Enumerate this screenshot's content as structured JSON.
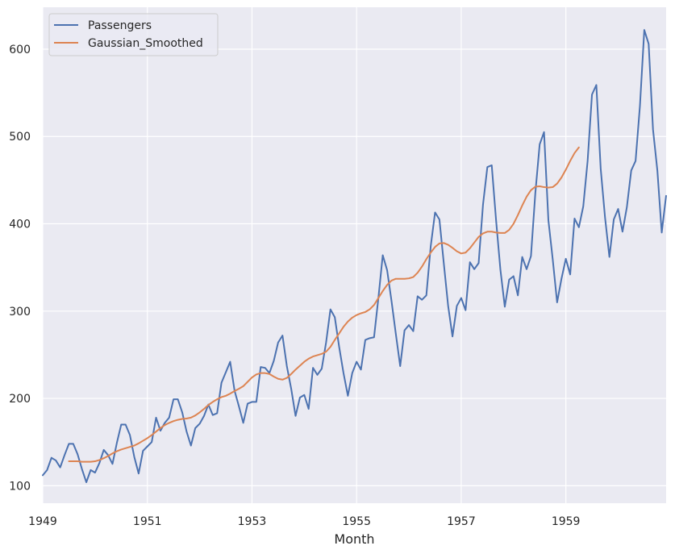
{
  "chart_data": {
    "type": "line",
    "title": "",
    "xlabel": "Month",
    "ylabel": "",
    "xlim": [
      1949.0,
      1960.917
    ],
    "ylim": [
      80,
      648
    ],
    "x_ticks": [
      {
        "value": 1949,
        "label": "1949"
      },
      {
        "value": 1951,
        "label": "1951"
      },
      {
        "value": 1953,
        "label": "1953"
      },
      {
        "value": 1955,
        "label": "1955"
      },
      {
        "value": 1957,
        "label": "1957"
      },
      {
        "value": 1959,
        "label": "1959"
      }
    ],
    "y_ticks": [
      {
        "value": 100,
        "label": "100"
      },
      {
        "value": 200,
        "label": "200"
      },
      {
        "value": 300,
        "label": "300"
      },
      {
        "value": 400,
        "label": "400"
      },
      {
        "value": 500,
        "label": "500"
      },
      {
        "value": 600,
        "label": "600"
      }
    ],
    "grid": true,
    "legend_position": "top-left",
    "x_start": 1949.0,
    "x_step": 0.08333,
    "series": [
      {
        "name": "Passengers",
        "color": "#4c72b0",
        "values": [
          112,
          118,
          132,
          129,
          121,
          135,
          148,
          148,
          136,
          119,
          104,
          118,
          115,
          126,
          141,
          135,
          125,
          149,
          170,
          170,
          158,
          133,
          114,
          140,
          145,
          150,
          178,
          163,
          172,
          178,
          199,
          199,
          184,
          162,
          146,
          166,
          171,
          180,
          193,
          181,
          183,
          218,
          230,
          242,
          209,
          191,
          172,
          194,
          196,
          196,
          236,
          235,
          229,
          243,
          264,
          272,
          237,
          211,
          180,
          201,
          204,
          188,
          235,
          227,
          234,
          264,
          302,
          293,
          259,
          229,
          203,
          229,
          242,
          233,
          267,
          269,
          270,
          315,
          364,
          347,
          312,
          274,
          237,
          278,
          284,
          277,
          317,
          313,
          318,
          374,
          413,
          405,
          355,
          306,
          271,
          306,
          315,
          301,
          356,
          348,
          355,
          422,
          465,
          467,
          404,
          347,
          305,
          336,
          340,
          318,
          362,
          348,
          363,
          435,
          491,
          505,
          404,
          359,
          310,
          337,
          360,
          342,
          406,
          396,
          420,
          472,
          548,
          559,
          463,
          407,
          362,
          405,
          417,
          391,
          419,
          461,
          472,
          535,
          622,
          606,
          508,
          461,
          390,
          432
        ]
      },
      {
        "name": "Gaussian_Smoothed",
        "color": "#dd8452",
        "start_index": 6,
        "values": [
          128,
          128,
          128,
          127.5,
          127.5,
          127.5,
          128,
          129.5,
          131.5,
          134,
          137,
          139.5,
          141.5,
          143,
          144.5,
          146,
          148.5,
          151.5,
          154.5,
          158,
          162,
          166,
          169.5,
          172,
          174,
          175.5,
          176.5,
          177,
          178,
          180.5,
          184,
          188,
          192.5,
          196,
          199,
          201.5,
          203,
          205.5,
          208.5,
          211,
          214,
          219,
          224,
          227.5,
          229,
          229,
          228,
          225,
          222.5,
          221.5,
          223.5,
          228,
          233,
          237.5,
          242,
          245.5,
          248,
          249.5,
          251,
          253.5,
          259,
          267,
          274.5,
          282,
          288,
          292.5,
          295.5,
          297.5,
          299,
          302,
          307,
          315,
          323,
          330,
          335,
          337,
          337,
          337,
          337.5,
          339,
          344,
          351,
          359.5,
          367,
          373.5,
          377.5,
          378,
          376,
          372.5,
          368.5,
          366,
          367,
          372,
          378.5,
          385,
          389,
          391,
          391,
          390,
          389.5,
          389.5,
          393,
          400,
          410,
          421,
          431,
          438.5,
          442.5,
          443,
          442,
          441.5,
          442,
          446,
          453,
          462,
          472,
          481,
          487.5
        ]
      }
    ]
  }
}
